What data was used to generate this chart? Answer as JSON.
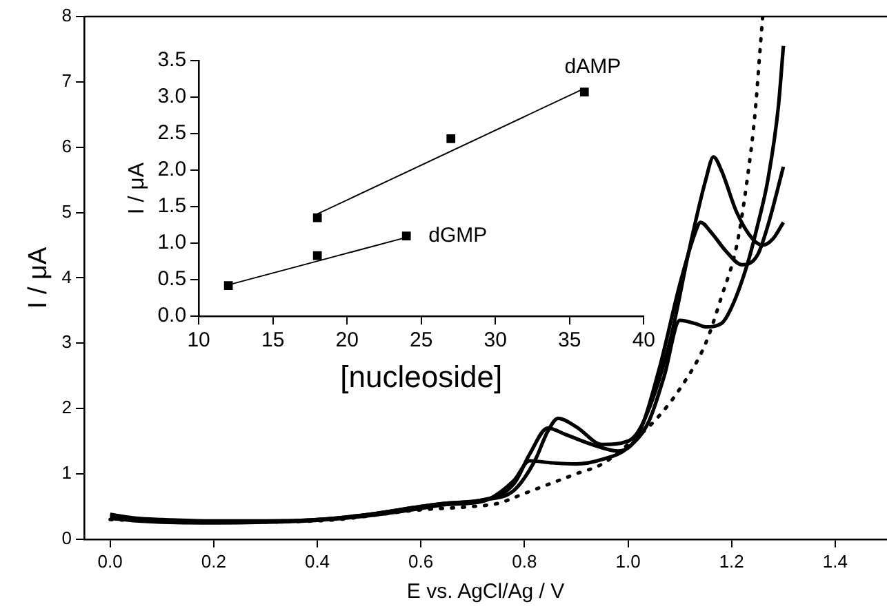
{
  "chart_data": [
    {
      "type": "line",
      "xlabel": "E vs. AgCl/Ag / V",
      "ylabel": "I / μA",
      "xlim": [
        -0.05,
        1.5
      ],
      "ylim": [
        0,
        8
      ],
      "xticks": [
        {
          "value": 0,
          "label": "0.0"
        },
        {
          "value": 0.2,
          "label": "0.2"
        },
        {
          "value": 0.4,
          "label": "0.4"
        },
        {
          "value": 0.6,
          "label": "0.6"
        },
        {
          "value": 0.8,
          "label": "0.8"
        },
        {
          "value": 1.0,
          "label": "1.0"
        },
        {
          "value": 1.2,
          "label": "1.2"
        },
        {
          "value": 1.4,
          "label": "1.4"
        }
      ],
      "yticks": [
        0,
        1,
        2,
        3,
        4,
        5,
        6,
        7,
        8
      ],
      "grid": false,
      "legend": false,
      "marker": "none",
      "series": [
        {
          "color": "#000000",
          "line_style": "solid",
          "x": [
            0,
            0.05,
            0.1,
            0.2,
            0.3,
            0.4,
            0.5,
            0.6,
            0.65,
            0.72,
            0.78,
            0.82,
            0.845,
            0.865,
            0.9,
            0.95,
            1.0,
            1.03,
            1.08,
            1.12,
            1.15,
            1.165,
            1.18,
            1.21,
            1.24,
            1.26,
            1.28,
            1.3
          ],
          "values": [
            0.38,
            0.32,
            0.3,
            0.28,
            0.28,
            0.3,
            0.38,
            0.5,
            0.55,
            0.6,
            0.75,
            1.2,
            1.65,
            1.85,
            1.72,
            1.45,
            1.5,
            1.8,
            3.0,
            4.5,
            5.5,
            5.85,
            5.65,
            5.0,
            4.6,
            4.5,
            4.6,
            4.85
          ]
        },
        {
          "color": "#000000",
          "line_style": "solid",
          "x": [
            0,
            0.05,
            0.1,
            0.2,
            0.3,
            0.4,
            0.5,
            0.6,
            0.65,
            0.72,
            0.78,
            0.81,
            0.845,
            0.88,
            0.93,
            0.98,
            1.02,
            1.06,
            1.1,
            1.13,
            1.14,
            1.16,
            1.19,
            1.22,
            1.25,
            1.27,
            1.3
          ],
          "values": [
            0.35,
            0.3,
            0.28,
            0.27,
            0.27,
            0.3,
            0.38,
            0.5,
            0.55,
            0.6,
            0.85,
            1.3,
            1.7,
            1.6,
            1.45,
            1.35,
            1.6,
            2.6,
            3.9,
            4.7,
            4.85,
            4.7,
            4.4,
            4.2,
            4.35,
            4.8,
            5.7
          ]
        },
        {
          "color": "#000000",
          "line_style": "solid",
          "x": [
            0,
            0.05,
            0.1,
            0.2,
            0.3,
            0.4,
            0.5,
            0.6,
            0.65,
            0.72,
            0.78,
            0.81,
            0.85,
            0.9,
            0.95,
            1.0,
            1.04,
            1.07,
            1.1,
            1.13,
            1.15,
            1.18,
            1.2,
            1.23,
            1.25,
            1.27,
            1.29,
            1.3
          ],
          "values": [
            0.32,
            0.28,
            0.26,
            0.25,
            0.26,
            0.29,
            0.36,
            0.47,
            0.53,
            0.58,
            0.9,
            1.2,
            1.17,
            1.15,
            1.22,
            1.4,
            1.8,
            2.5,
            3.35,
            3.3,
            3.25,
            3.3,
            3.55,
            4.2,
            4.8,
            5.5,
            6.6,
            7.55
          ]
        },
        {
          "color": "#000000",
          "line_style": "dotted",
          "x": [
            0,
            0.1,
            0.2,
            0.4,
            0.6,
            0.7,
            0.75,
            0.8,
            0.85,
            0.9,
            0.95,
            1.0,
            1.05,
            1.1,
            1.15,
            1.18,
            1.21,
            1.23,
            1.245,
            1.255,
            1.26
          ],
          "values": [
            0.3,
            0.27,
            0.26,
            0.28,
            0.45,
            0.5,
            0.55,
            0.7,
            0.85,
            1.0,
            1.15,
            1.45,
            1.8,
            2.3,
            3.0,
            3.7,
            4.5,
            5.5,
            6.5,
            7.5,
            8.0
          ]
        }
      ]
    },
    {
      "type": "scatter",
      "xlabel": "[nucleoside]",
      "ylabel": "I / μA",
      "xlim": [
        10,
        40
      ],
      "ylim": [
        0,
        3.5
      ],
      "xticks": [
        10,
        15,
        20,
        25,
        30,
        35,
        40
      ],
      "yticks": [
        {
          "value": 0,
          "label": "0.0"
        },
        {
          "value": 0.5,
          "label": "0.5"
        },
        {
          "value": 1.0,
          "label": "1.0"
        },
        {
          "value": 1.5,
          "label": "1.5"
        },
        {
          "value": 2.0,
          "label": "2.0"
        },
        {
          "value": 2.5,
          "label": "2.5"
        },
        {
          "value": 3.0,
          "label": "3.0"
        },
        {
          "value": 3.5,
          "label": "3.5"
        }
      ],
      "grid": false,
      "legend": false,
      "marker": "square",
      "series": [
        {
          "name": "dAMP",
          "color": "#000000",
          "x": [
            18,
            27,
            36
          ],
          "values": [
            1.35,
            2.43,
            3.07
          ]
        },
        {
          "name": "dGMP",
          "color": "#000000",
          "x": [
            12,
            18,
            24
          ],
          "values": [
            0.42,
            0.83,
            1.1
          ]
        },
        {
          "type": "line",
          "marker": "none",
          "color": "#000000",
          "x": [
            18,
            36
          ],
          "values": [
            1.4,
            3.12
          ]
        },
        {
          "type": "line",
          "marker": "none",
          "color": "#000000",
          "x": [
            12,
            24
          ],
          "values": [
            0.43,
            1.08
          ]
        }
      ]
    }
  ]
}
